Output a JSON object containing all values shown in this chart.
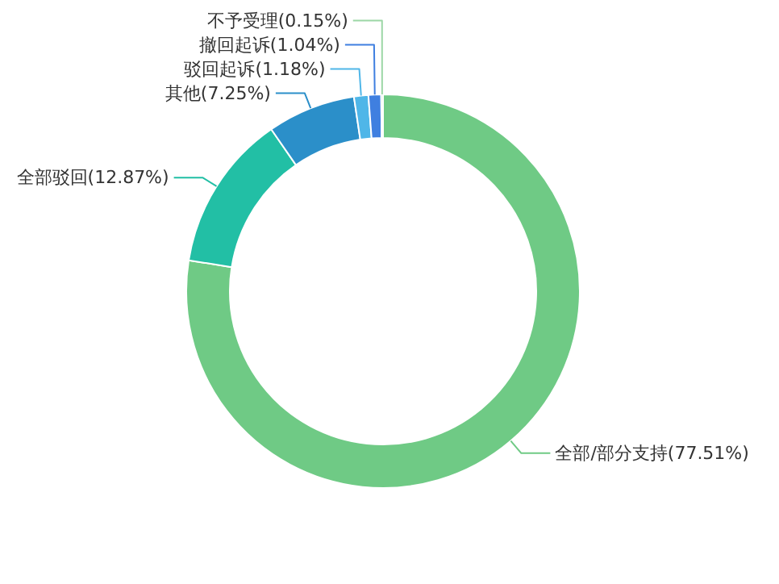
{
  "chart_data": {
    "type": "donut",
    "categories": [
      "全部/部分支持(77.51%)",
      "全部驳回(12.87%)",
      "其他(7.25%)",
      "驳回起诉(1.18%)",
      "撤回起诉(1.04%)",
      "不予受理(0.15%)"
    ],
    "values": [
      77.51,
      12.87,
      7.25,
      1.18,
      1.04,
      0.15
    ],
    "colors": [
      "#6fca85",
      "#22bfa5",
      "#2b8fc9",
      "#4fb6e8",
      "#3f7fe0",
      "#9cd7a6"
    ]
  }
}
